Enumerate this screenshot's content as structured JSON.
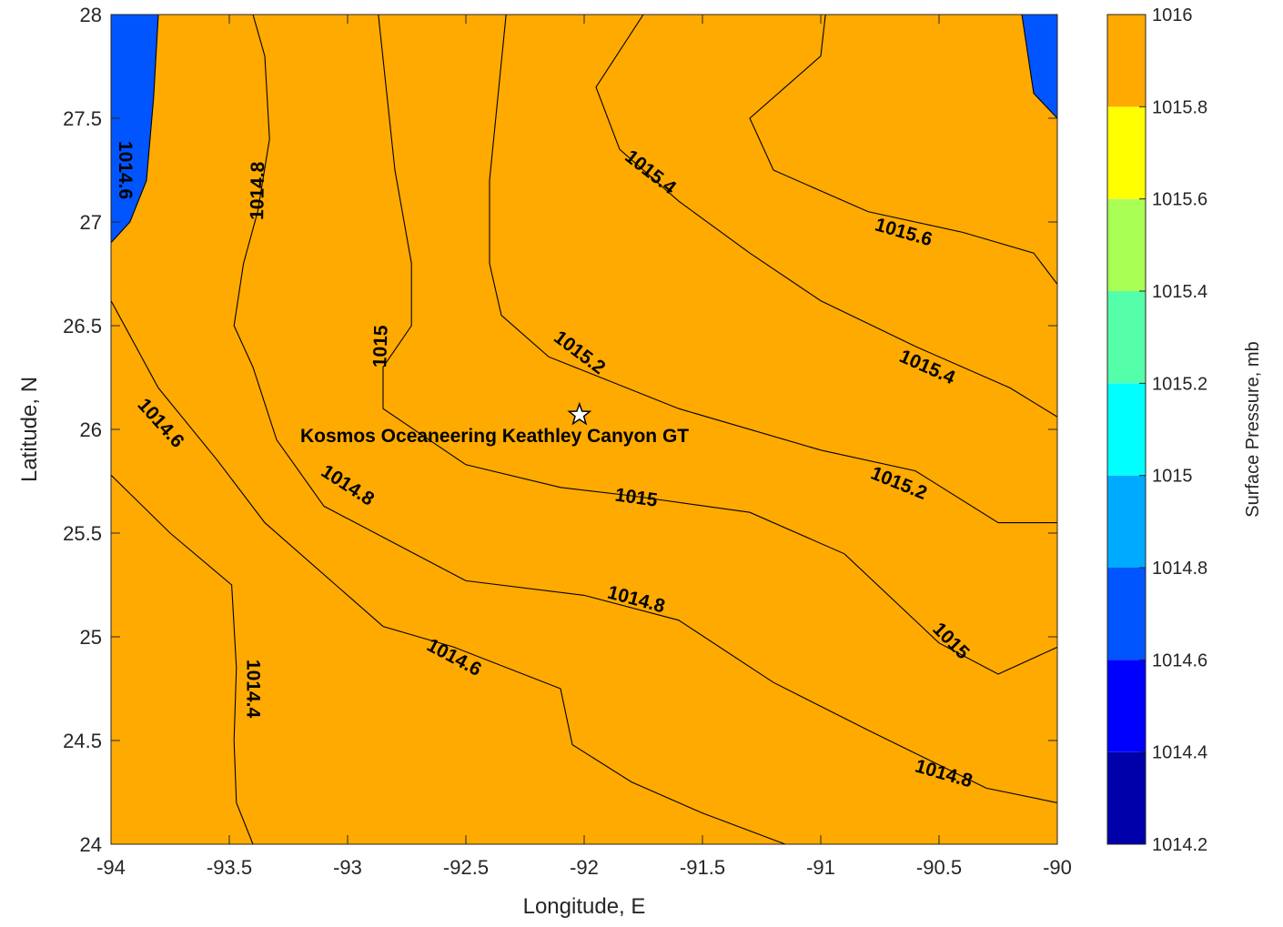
{
  "chart_data": {
    "type": "contour",
    "title": "",
    "xlabel": "Longitude, E",
    "ylabel": "Latitude, N",
    "xlim": [
      -94,
      -90
    ],
    "ylim": [
      24,
      28
    ],
    "xticks": [
      -94,
      -93.5,
      -93,
      -92.5,
      -92,
      -91.5,
      -91,
      -90.5,
      -90
    ],
    "xtick_labels": [
      "-94",
      "-93.5",
      "-93",
      "-92.5",
      "-92",
      "-91.5",
      "-91",
      "-90.5",
      "-90"
    ],
    "yticks": [
      24,
      24.5,
      25,
      25.5,
      26,
      26.5,
      27,
      27.5,
      28
    ],
    "ytick_labels": [
      "24",
      "24.5",
      "25",
      "25.5",
      "26",
      "26.5",
      "27",
      "27.5",
      "28"
    ],
    "levels": [
      1014.4,
      1014.6,
      1014.8,
      1015,
      1015.2,
      1015.4,
      1015.6,
      1015.8
    ],
    "contour_lines": [
      {
        "level": 1014.4,
        "points": [
          [
            -93.4,
            24
          ],
          [
            -93.47,
            24.2
          ],
          [
            -93.48,
            24.5
          ],
          [
            -93.47,
            24.85
          ],
          [
            -93.49,
            25.25
          ],
          [
            -93.75,
            25.5
          ],
          [
            -94,
            25.78
          ]
        ]
      },
      {
        "level": 1014.6,
        "points": [
          [
            -91.15,
            24
          ],
          [
            -91.5,
            24.15
          ],
          [
            -91.8,
            24.3
          ],
          [
            -92.05,
            24.48
          ],
          [
            -92.1,
            24.75
          ],
          [
            -92.55,
            24.95
          ],
          [
            -92.85,
            25.05
          ],
          [
            -93.05,
            25.25
          ],
          [
            -93.35,
            25.55
          ],
          [
            -93.55,
            25.85
          ],
          [
            -93.8,
            26.2
          ],
          [
            -94,
            26.62
          ]
        ]
      },
      {
        "level": 1014.6,
        "points": [
          [
            -93.8,
            28
          ],
          [
            -93.82,
            27.6
          ],
          [
            -93.85,
            27.2
          ],
          [
            -93.92,
            27.0
          ],
          [
            -94,
            26.9
          ]
        ]
      },
      {
        "level": 1014.8,
        "points": [
          [
            -90,
            24.2
          ],
          [
            -90.3,
            24.27
          ],
          [
            -90.8,
            24.55
          ],
          [
            -91.2,
            24.78
          ],
          [
            -91.6,
            25.08
          ],
          [
            -92.0,
            25.2
          ],
          [
            -92.5,
            25.27
          ],
          [
            -92.8,
            25.45
          ],
          [
            -93.1,
            25.63
          ],
          [
            -93.3,
            25.95
          ],
          [
            -93.4,
            26.3
          ],
          [
            -93.48,
            26.5
          ],
          [
            -93.44,
            26.8
          ],
          [
            -93.38,
            27.05
          ],
          [
            -93.33,
            27.4
          ],
          [
            -93.35,
            27.8
          ],
          [
            -93.4,
            28
          ]
        ]
      },
      {
        "level": 1015,
        "points": [
          [
            -90,
            24.95
          ],
          [
            -90.25,
            24.82
          ],
          [
            -90.5,
            24.97
          ],
          [
            -90.9,
            25.4
          ],
          [
            -91.3,
            25.6
          ],
          [
            -91.8,
            25.68
          ],
          [
            -92.1,
            25.72
          ],
          [
            -92.5,
            25.83
          ],
          [
            -92.85,
            26.1
          ],
          [
            -92.85,
            26.3
          ],
          [
            -92.73,
            26.5
          ],
          [
            -92.73,
            26.8
          ],
          [
            -92.8,
            27.25
          ],
          [
            -92.87,
            28
          ]
        ]
      },
      {
        "level": 1015.2,
        "points": [
          [
            -90,
            25.55
          ],
          [
            -90.25,
            25.55
          ],
          [
            -90.6,
            25.8
          ],
          [
            -91.0,
            25.9
          ],
          [
            -91.6,
            26.1
          ],
          [
            -92.15,
            26.35
          ],
          [
            -92.35,
            26.55
          ],
          [
            -92.4,
            26.8
          ],
          [
            -92.4,
            27.2
          ],
          [
            -92.33,
            28
          ]
        ]
      },
      {
        "level": 1015.4,
        "points": [
          [
            -90,
            26.06
          ],
          [
            -90.2,
            26.2
          ],
          [
            -90.6,
            26.4
          ],
          [
            -91.0,
            26.62
          ],
          [
            -91.3,
            26.85
          ],
          [
            -91.6,
            27.1
          ],
          [
            -91.85,
            27.35
          ],
          [
            -91.95,
            27.65
          ],
          [
            -91.75,
            28
          ]
        ]
      },
      {
        "level": 1015.6,
        "points": [
          [
            -90,
            26.7
          ],
          [
            -90.1,
            26.85
          ],
          [
            -90.4,
            26.95
          ],
          [
            -90.8,
            27.05
          ],
          [
            -91.2,
            27.25
          ],
          [
            -91.3,
            27.5
          ],
          [
            -91.0,
            27.8
          ],
          [
            -90.98,
            28
          ]
        ]
      },
      {
        "level": 1015.8,
        "points": [
          [
            -90,
            27.5
          ],
          [
            -90.1,
            27.62
          ],
          [
            -90.15,
            28
          ]
        ]
      }
    ],
    "contour_labels": [
      {
        "text": "1014.6",
        "x": -93.94,
        "y": 27.25,
        "angle": 90
      },
      {
        "text": "1014.8",
        "x": -93.38,
        "y": 27.15,
        "angle": -89
      },
      {
        "text": "1015",
        "x": -92.86,
        "y": 26.4,
        "angle": -88
      },
      {
        "text": "1015.4",
        "x": -91.72,
        "y": 27.24,
        "angle": 38
      },
      {
        "text": "1015.6",
        "x": -90.65,
        "y": 26.95,
        "angle": 16
      },
      {
        "text": "1015.2",
        "x": -92.02,
        "y": 26.37,
        "angle": 37
      },
      {
        "text": "1015.4",
        "x": -90.55,
        "y": 26.3,
        "angle": 24
      },
      {
        "text": "1014.6",
        "x": -93.79,
        "y": 26.03,
        "angle": 48
      },
      {
        "text": "1014.8",
        "x": -93.0,
        "y": 25.73,
        "angle": 33
      },
      {
        "text": "1015",
        "x": -91.78,
        "y": 25.67,
        "angle": 8
      },
      {
        "text": "1015.2",
        "x": -90.67,
        "y": 25.74,
        "angle": 22
      },
      {
        "text": "1014.8",
        "x": -91.78,
        "y": 25.18,
        "angle": 15
      },
      {
        "text": "1015",
        "x": -90.45,
        "y": 24.98,
        "angle": 45
      },
      {
        "text": "1014.6",
        "x": -92.55,
        "y": 24.9,
        "angle": 28
      },
      {
        "text": "1014.4",
        "x": -93.4,
        "y": 24.75,
        "angle": 90
      },
      {
        "text": "1014.8",
        "x": -90.48,
        "y": 24.34,
        "angle": 16
      }
    ],
    "marker": {
      "x": -92.02,
      "y": 26.07,
      "symbol": "star"
    },
    "annotation": {
      "text": "Kosmos Oceaneering Keathley Canyon GT",
      "x": -93.2,
      "y": 25.97
    },
    "grid": false,
    "colorbar": {
      "label": "Surface Pressure, mb",
      "min": 1014.2,
      "max": 1016,
      "ticks": [
        1014.2,
        1014.4,
        1014.6,
        1014.8,
        1015,
        1015.2,
        1015.4,
        1015.6,
        1015.8,
        1016
      ],
      "tick_labels": [
        "1014.2",
        "1014.4",
        "1014.6",
        "1014.8",
        "1015",
        "1015.2",
        "1015.4",
        "1015.6",
        "1015.8",
        "1016"
      ]
    },
    "band_colors": [
      "#0000aa",
      "#0000ff",
      "#0055ff",
      "#00aaff",
      "#00ffff",
      "#55ffaa",
      "#aaff55",
      "#ffff00",
      "#ffaa00",
      "#ff5500"
    ]
  }
}
